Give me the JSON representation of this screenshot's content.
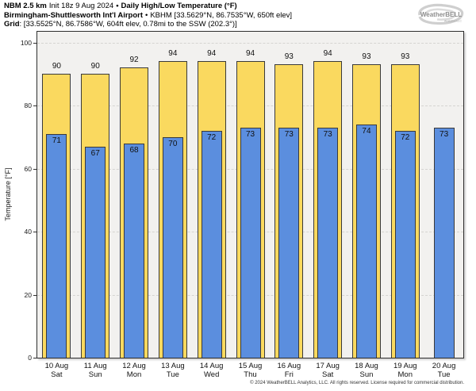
{
  "header": {
    "line1_model": "NBM 2.5 km",
    "line1_init": "Init 18z 9 Aug 2024",
    "line1_sep": "•",
    "line1_title": "Daily High/Low Temperature (°F)",
    "line2_station": "Birmingham-Shuttlesworth Int'l Airport",
    "line2_sep": "•",
    "line2_detail": "KBHM [33.5629°N, 86.7535°W, 650ft elev]",
    "line3_label": "Grid",
    "line3_detail": ": [33.5525°N, 86.7586°W, 604ft elev, 0.78mi to the SSW (202.3°)]"
  },
  "logo": {
    "brand": "WeatherBELL",
    "sub": "Analytics LLC"
  },
  "footer": {
    "copyright": "© 2024 WeatherBELL Analytics, LLC. All rights reserved. License required for commercial distribution."
  },
  "chart_data": {
    "type": "bar",
    "title": "Daily High/Low Temperature (°F)",
    "ylabel": "Temperature [°F]",
    "ylim": [
      0,
      103.4
    ],
    "yticks": [
      0,
      20,
      40,
      60,
      80,
      100
    ],
    "grid": "horizontal-dashed",
    "legend": "none",
    "categories": [
      "10 Aug",
      "11 Aug",
      "12 Aug",
      "13 Aug",
      "14 Aug",
      "15 Aug",
      "16 Aug",
      "17 Aug",
      "18 Aug",
      "19 Aug",
      "20 Aug"
    ],
    "weekdays": [
      "Sat",
      "Sun",
      "Mon",
      "Tue",
      "Wed",
      "Thu",
      "Fri",
      "Sat",
      "Sun",
      "Mon",
      "Tue"
    ],
    "series": [
      {
        "name": "Daily High",
        "color": "#FAD95F",
        "border": "#3a3a3a",
        "values": [
          90,
          90,
          92,
          94,
          94,
          94,
          93,
          94,
          93,
          93,
          null
        ]
      },
      {
        "name": "Daily Low",
        "color": "#5B8EDE",
        "border": "#3a3a3a",
        "values": [
          71,
          67,
          68,
          70,
          72,
          73,
          73,
          73,
          74,
          72,
          73
        ]
      }
    ]
  }
}
